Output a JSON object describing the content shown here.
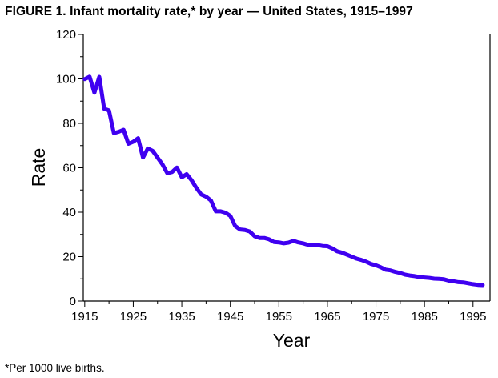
{
  "title": "FIGURE 1. Infant mortality rate,* by year — United States, 1915–1997",
  "footnote": "*Per 1000 live births.",
  "colors": {
    "line": "#3f00f0",
    "axis": "#000000",
    "background": "#ffffff"
  },
  "chart_data": {
    "type": "line",
    "title": "FIGURE 1. Infant mortality rate,* by year — United States, 1915–1997",
    "xlabel": "Year",
    "ylabel": "Rate",
    "xlim": [
      1915,
      1997
    ],
    "ylim": [
      0,
      120
    ],
    "xticks": [
      1915,
      1925,
      1935,
      1945,
      1955,
      1965,
      1975,
      1985,
      1995
    ],
    "yticks": [
      0,
      20,
      40,
      60,
      80,
      100,
      120
    ],
    "grid": false,
    "legend": "none",
    "series": [
      {
        "x": [
          1915,
          1916,
          1917,
          1918,
          1919,
          1920,
          1921,
          1922,
          1923,
          1924,
          1925,
          1926,
          1927,
          1928,
          1929,
          1930,
          1931,
          1932,
          1933,
          1934,
          1935,
          1936,
          1937,
          1938,
          1939,
          1940,
          1941,
          1942,
          1943,
          1944,
          1945,
          1946,
          1947,
          1948,
          1949,
          1950,
          1951,
          1952,
          1953,
          1954,
          1955,
          1956,
          1957,
          1958,
          1959,
          1960,
          1961,
          1962,
          1963,
          1964,
          1965,
          1966,
          1967,
          1968,
          1969,
          1970,
          1971,
          1972,
          1973,
          1974,
          1975,
          1976,
          1977,
          1978,
          1979,
          1980,
          1981,
          1982,
          1983,
          1984,
          1985,
          1986,
          1987,
          1988,
          1989,
          1990,
          1991,
          1992,
          1993,
          1994,
          1995,
          1996,
          1997
        ],
        "values": [
          99.9,
          101.0,
          93.8,
          100.9,
          86.6,
          85.8,
          75.6,
          76.2,
          77.1,
          70.8,
          71.7,
          73.3,
          64.6,
          68.7,
          67.6,
          64.6,
          61.6,
          57.6,
          58.1,
          60.1,
          55.7,
          57.1,
          54.4,
          51.0,
          48.0,
          47.0,
          45.3,
          40.4,
          40.4,
          39.8,
          38.3,
          33.8,
          32.2,
          32.0,
          31.3,
          29.2,
          28.4,
          28.4,
          27.8,
          26.6,
          26.4,
          26.0,
          26.3,
          27.1,
          26.4,
          26.0,
          25.3,
          25.3,
          25.2,
          24.8,
          24.7,
          23.7,
          22.4,
          21.8,
          20.9,
          20.0,
          19.1,
          18.5,
          17.7,
          16.7,
          16.1,
          15.2,
          14.1,
          13.8,
          13.1,
          12.6,
          11.9,
          11.5,
          11.2,
          10.8,
          10.6,
          10.4,
          10.1,
          10.0,
          9.8,
          9.2,
          8.9,
          8.5,
          8.4,
          8.0,
          7.6,
          7.3,
          7.2
        ]
      }
    ]
  }
}
